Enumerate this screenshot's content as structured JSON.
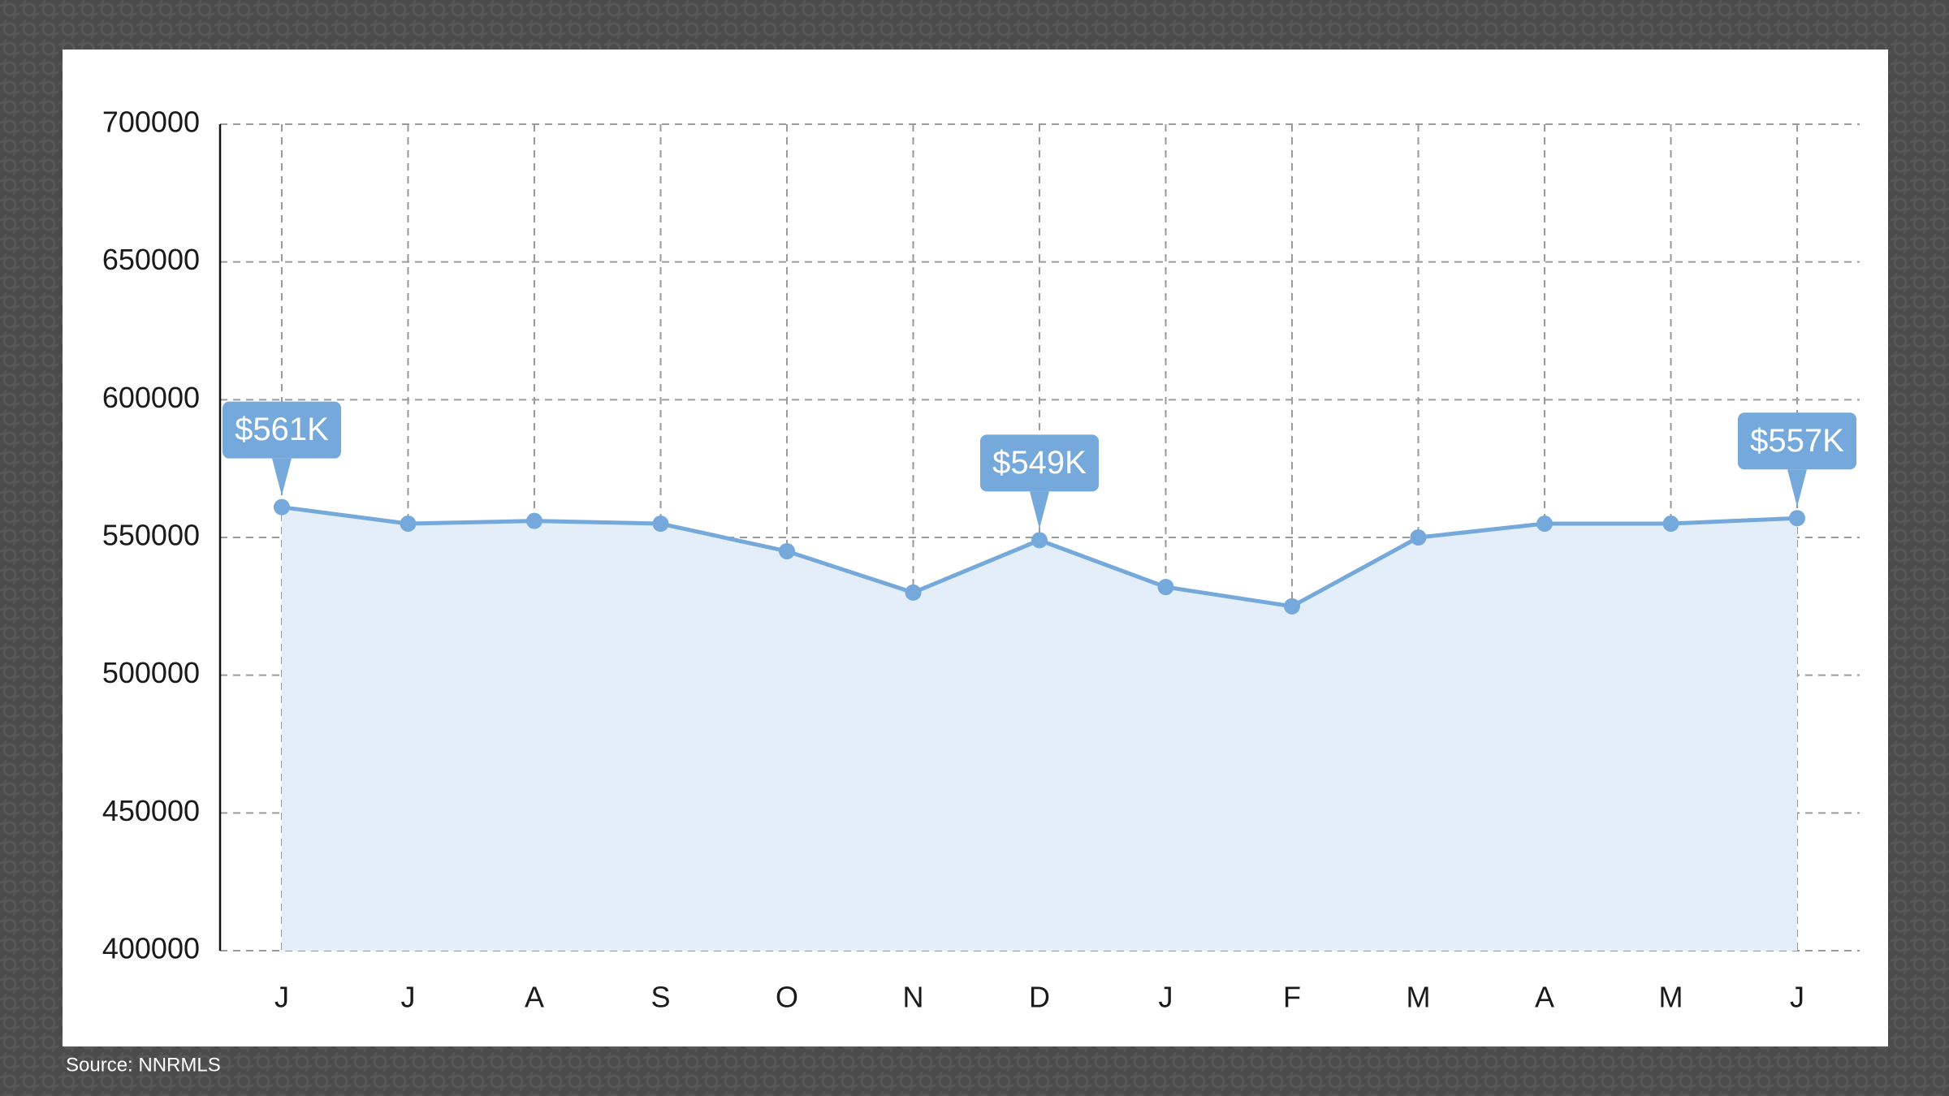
{
  "chart_data": {
    "type": "line",
    "categories": [
      "J",
      "J",
      "A",
      "S",
      "O",
      "N",
      "D",
      "J",
      "F",
      "M",
      "A",
      "M",
      "J"
    ],
    "series": [
      {
        "name": null,
        "color": "#75a9dc",
        "values": [
          561000,
          555000,
          556000,
          555000,
          545000,
          530000,
          549000,
          532000,
          525000,
          550000,
          555000,
          555000,
          557000
        ],
        "value_labels": [
          "$561K",
          null,
          null,
          null,
          null,
          null,
          "$549K",
          null,
          null,
          null,
          null,
          null,
          "$557K"
        ]
      }
    ],
    "area_fill": "#e3eef9",
    "ylim": [
      400000,
      700000
    ],
    "yticks": [
      400000,
      450000,
      500000,
      550000,
      600000,
      650000,
      700000
    ],
    "grid": true,
    "source": "Source: NNRMLS"
  }
}
